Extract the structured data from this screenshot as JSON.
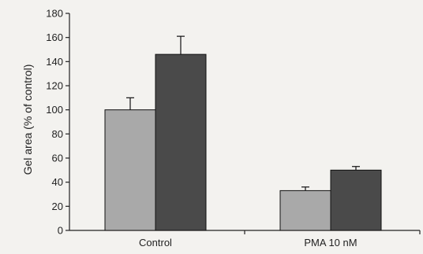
{
  "chart_data": {
    "type": "bar",
    "title": "",
    "xlabel": "",
    "ylabel": "Gel area (% of control)",
    "ylim": [
      0,
      180
    ],
    "yticks": [
      0,
      20,
      40,
      60,
      80,
      100,
      120,
      140,
      160,
      180
    ],
    "categories": [
      "Control",
      "PMA 10 nM"
    ],
    "series": [
      {
        "values": [
          100,
          33
        ],
        "errors": [
          10,
          3
        ],
        "color": "#a9a9a9"
      },
      {
        "values": [
          146,
          50
        ],
        "errors": [
          15,
          3
        ],
        "color": "#4a4a4a"
      }
    ],
    "grid": false,
    "legend": "none"
  }
}
